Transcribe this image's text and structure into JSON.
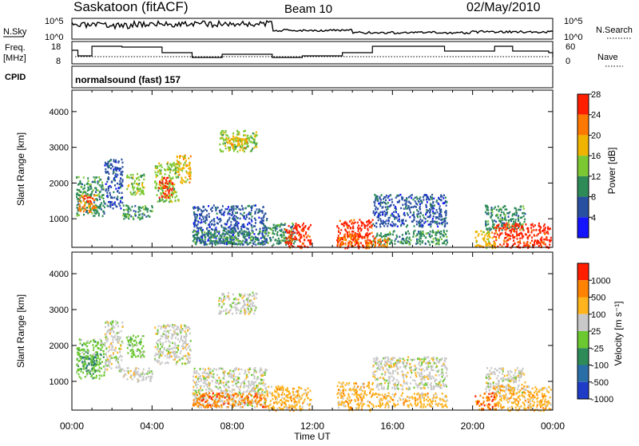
{
  "header": {
    "station": "Saskatoon (fitACF)",
    "beam": "Beam 10",
    "date": "02/May/2010"
  },
  "noise_panel": {
    "left_label": "N.Sky",
    "right_label": "N.Search",
    "left_ticks": [
      "10^5",
      "10^0"
    ],
    "right_ticks": [
      "10^5",
      "10^0"
    ]
  },
  "freq_panel": {
    "left_label_1": "Freq.",
    "left_label_2": "[MHz]",
    "right_label": "Nave",
    "left_ticks": [
      "18",
      "8"
    ],
    "right_ticks": [
      "60",
      "0"
    ]
  },
  "cpid": {
    "label": "CPID",
    "value": "normalsound (fast) 157"
  },
  "chart_data": [
    {
      "type": "heatmap",
      "name": "power",
      "ylabel": "Slant Range [km]",
      "yticks": [
        1000,
        2000,
        3000,
        4000
      ],
      "ylim": [
        200,
        4600
      ],
      "x_ticks": [
        "00:00",
        "04:00",
        "08:00",
        "12:00",
        "16:00",
        "20:00",
        "00:00"
      ],
      "xlim_hours": [
        0,
        24
      ],
      "colorbar": {
        "label": "Power [dB]",
        "ticks": [
          "4",
          "8",
          "12",
          "16",
          "20",
          "24",
          "28"
        ],
        "colors": [
          "#1414ff",
          "#2850a0",
          "#2e8b57",
          "#7cc832",
          "#f0b400",
          "#ff7800",
          "#ff1e00"
        ]
      },
      "regions": [
        {
          "t0": 0.2,
          "t1": 1.6,
          "r0": 1100,
          "r1": 2200,
          "c": 2
        },
        {
          "t0": 0.3,
          "t1": 1.2,
          "r0": 1200,
          "r1": 1700,
          "c": 5
        },
        {
          "t0": 1.6,
          "t1": 2.5,
          "r0": 1300,
          "r1": 2700,
          "c": 1
        },
        {
          "t0": 2.5,
          "t1": 4.0,
          "r0": 1000,
          "r1": 1400,
          "c": 2
        },
        {
          "t0": 2.7,
          "t1": 3.6,
          "r0": 1700,
          "r1": 2300,
          "c": 3
        },
        {
          "t0": 4.1,
          "t1": 5.3,
          "r0": 1500,
          "r1": 2600,
          "c": 3
        },
        {
          "t0": 4.3,
          "t1": 5.0,
          "r0": 1600,
          "r1": 2200,
          "c": 6
        },
        {
          "t0": 5.2,
          "t1": 5.9,
          "r0": 2000,
          "r1": 2800,
          "c": 4
        },
        {
          "t0": 6.0,
          "t1": 9.7,
          "r0": 300,
          "r1": 1400,
          "c": 1
        },
        {
          "t0": 6.0,
          "t1": 9.7,
          "r0": 300,
          "r1": 700,
          "c": 2
        },
        {
          "t0": 7.3,
          "t1": 9.2,
          "r0": 2900,
          "r1": 3500,
          "c": 3
        },
        {
          "t0": 7.6,
          "t1": 8.7,
          "r0": 3000,
          "r1": 3300,
          "c": 4
        },
        {
          "t0": 9.7,
          "t1": 11.2,
          "r0": 300,
          "r1": 900,
          "c": 2
        },
        {
          "t0": 10.6,
          "t1": 11.9,
          "r0": 200,
          "r1": 900,
          "c": 6
        },
        {
          "t0": 13.2,
          "t1": 15.0,
          "r0": 200,
          "r1": 1000,
          "c": 6
        },
        {
          "t0": 13.2,
          "t1": 14.3,
          "r0": 200,
          "r1": 600,
          "c": 5
        },
        {
          "t0": 15.0,
          "t1": 18.7,
          "r0": 800,
          "r1": 1700,
          "c": 1
        },
        {
          "t0": 15.0,
          "t1": 18.7,
          "r0": 300,
          "r1": 700,
          "c": 2
        },
        {
          "t0": 14.6,
          "t1": 15.8,
          "r0": 200,
          "r1": 500,
          "c": 5
        },
        {
          "t0": 20.6,
          "t1": 22.6,
          "r0": 700,
          "r1": 1400,
          "c": 2
        },
        {
          "t0": 21.0,
          "t1": 23.9,
          "r0": 200,
          "r1": 900,
          "c": 6
        },
        {
          "t0": 20.1,
          "t1": 21.2,
          "r0": 200,
          "r1": 700,
          "c": 4
        }
      ]
    },
    {
      "type": "heatmap",
      "name": "velocity",
      "ylabel": "Slant Range [km]",
      "yticks": [
        1000,
        2000,
        3000,
        4000
      ],
      "ylim": [
        200,
        4600
      ],
      "x_ticks": [
        "00:00",
        "04:00",
        "08:00",
        "12:00",
        "16:00",
        "20:00",
        "00:00"
      ],
      "xlim_hours": [
        0,
        24
      ],
      "xlabel": "Time UT",
      "colorbar": {
        "label": "Velocity [m s⁻¹]",
        "ticks": [
          "1000",
          "500",
          "100",
          "25",
          "-25",
          "-100",
          "-500",
          "-1000"
        ],
        "colors": [
          "#1e3cc8",
          "#2a6ea8",
          "#2e8b57",
          "#6cc830",
          "#c8c8c8",
          "#ffb41e",
          "#ff8200",
          "#ff1e00"
        ]
      },
      "regions": [
        {
          "t0": 0.2,
          "t1": 1.6,
          "r0": 1100,
          "r1": 2200,
          "c": 3
        },
        {
          "t0": 0.4,
          "t1": 1.2,
          "r0": 1300,
          "r1": 1700,
          "c": 2
        },
        {
          "t0": 1.6,
          "t1": 2.5,
          "r0": 1300,
          "r1": 2700,
          "c": 4
        },
        {
          "t0": 2.5,
          "t1": 4.0,
          "r0": 1000,
          "r1": 1400,
          "c": 4
        },
        {
          "t0": 2.7,
          "t1": 3.6,
          "r0": 1700,
          "r1": 2300,
          "c": 3
        },
        {
          "t0": 4.1,
          "t1": 5.9,
          "r0": 1500,
          "r1": 2600,
          "c": 4
        },
        {
          "t0": 6.0,
          "t1": 9.7,
          "r0": 300,
          "r1": 1400,
          "c": 4
        },
        {
          "t0": 6.0,
          "t1": 9.7,
          "r0": 300,
          "r1": 700,
          "c": 6
        },
        {
          "t0": 7.3,
          "t1": 9.2,
          "r0": 2900,
          "r1": 3500,
          "c": 4
        },
        {
          "t0": 9.7,
          "t1": 11.9,
          "r0": 200,
          "r1": 900,
          "c": 5
        },
        {
          "t0": 13.2,
          "t1": 15.0,
          "r0": 200,
          "r1": 1000,
          "c": 5
        },
        {
          "t0": 15.0,
          "t1": 18.7,
          "r0": 800,
          "r1": 1700,
          "c": 4
        },
        {
          "t0": 15.0,
          "t1": 18.7,
          "r0": 300,
          "r1": 700,
          "c": 5
        },
        {
          "t0": 20.6,
          "t1": 22.6,
          "r0": 700,
          "r1": 1400,
          "c": 4
        },
        {
          "t0": 21.0,
          "t1": 23.9,
          "r0": 200,
          "r1": 900,
          "c": 5
        },
        {
          "t0": 20.1,
          "t1": 21.2,
          "r0": 200,
          "r1": 700,
          "c": 6
        }
      ]
    }
  ]
}
